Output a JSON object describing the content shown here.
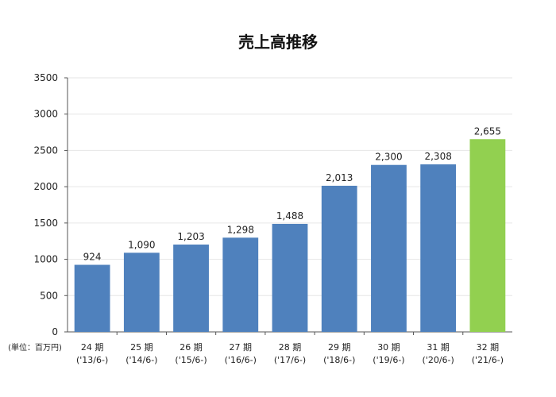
{
  "chart_data": {
    "type": "bar",
    "title": "売上高推移",
    "unit_label": "(単位：百万円)",
    "categories": [
      {
        "period": "24 期",
        "date": "('13/6-)"
      },
      {
        "period": "25 期",
        "date": "('14/6-)"
      },
      {
        "period": "26 期",
        "date": "('15/6-)"
      },
      {
        "period": "27 期",
        "date": "('16/6-)"
      },
      {
        "period": "28 期",
        "date": "('17/6-)"
      },
      {
        "period": "29 期",
        "date": "('18/6-)"
      },
      {
        "period": "30 期",
        "date": "('19/6-)"
      },
      {
        "period": "31 期",
        "date": "('20/6-)"
      },
      {
        "period": "32 期",
        "date": "('21/6-)"
      }
    ],
    "values": [
      924,
      1090,
      1203,
      1298,
      1488,
      2013,
      2300,
      2308,
      2655
    ],
    "value_labels": [
      "924",
      "1,090",
      "1,203",
      "1,298",
      "1,488",
      "2,013",
      "2,300",
      "2,308",
      "2,655"
    ],
    "ylim": [
      0,
      3500
    ],
    "yticks": [
      0,
      500,
      1000,
      1500,
      2000,
      2500,
      3000,
      3500
    ],
    "grid": true,
    "legend": "none",
    "colors": {
      "bar": "#4f81bd",
      "highlight_bar": "#92d050",
      "grid": "#e6e6e6",
      "axis": "#555555"
    },
    "highlight_index": 8
  }
}
